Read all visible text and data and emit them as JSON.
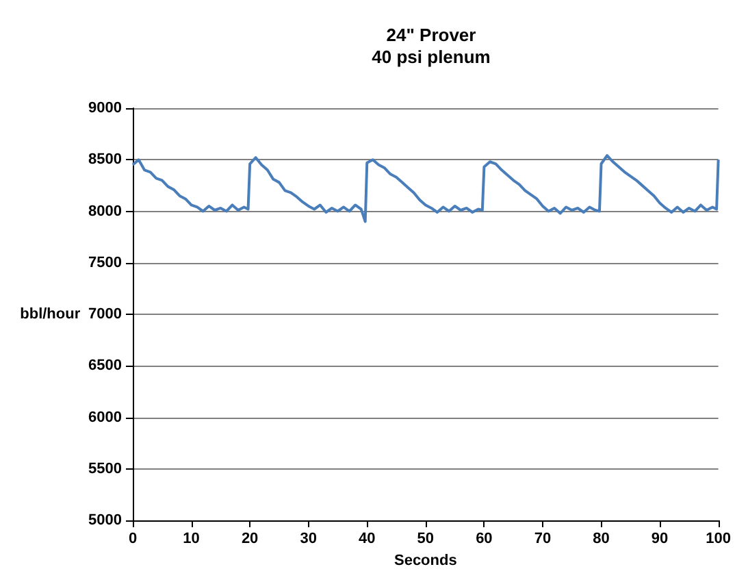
{
  "chart_data": {
    "type": "line",
    "title": "24\" Prover",
    "subtitle": "40 psi plenum",
    "xlabel": "Seconds",
    "ylabel": "bbl/hour",
    "x": [
      0,
      1,
      2,
      3,
      4,
      5,
      6,
      7,
      8,
      9,
      10,
      11,
      12,
      13,
      14,
      15,
      16,
      17,
      18,
      19,
      19.7,
      20,
      21,
      22,
      23,
      24,
      25,
      26,
      27,
      28,
      29,
      30,
      31,
      32,
      33,
      34,
      35,
      36,
      37,
      38,
      39,
      39.7,
      40,
      41,
      42,
      43,
      44,
      45,
      46,
      47,
      48,
      49,
      50,
      51,
      52,
      53,
      54,
      55,
      56,
      57,
      58,
      59,
      59.7,
      60,
      61,
      62,
      63,
      64,
      65,
      66,
      67,
      68,
      69,
      70,
      71,
      72,
      73,
      74,
      75,
      76,
      77,
      78,
      79,
      79.7,
      80,
      81,
      82,
      83,
      84,
      85,
      86,
      87,
      88,
      89,
      90,
      91,
      92,
      93,
      94,
      95,
      96,
      97,
      98,
      99,
      99.7,
      100
    ],
    "series": [
      {
        "color": "#4a7ebb",
        "values": [
          8450,
          8500,
          8400,
          8380,
          8320,
          8300,
          8240,
          8210,
          8150,
          8120,
          8060,
          8040,
          8000,
          8050,
          8010,
          8030,
          8000,
          8060,
          8010,
          8040,
          8020,
          8460,
          8520,
          8450,
          8400,
          8310,
          8280,
          8200,
          8180,
          8140,
          8090,
          8050,
          8020,
          8060,
          7990,
          8030,
          8000,
          8040,
          8000,
          8060,
          8020,
          7900,
          8470,
          8500,
          8450,
          8420,
          8360,
          8330,
          8280,
          8230,
          8180,
          8110,
          8060,
          8030,
          7990,
          8040,
          8000,
          8050,
          8010,
          8030,
          7990,
          8020,
          8010,
          8430,
          8480,
          8460,
          8400,
          8350,
          8300,
          8260,
          8200,
          8160,
          8120,
          8050,
          8000,
          8030,
          7980,
          8040,
          8010,
          8030,
          7990,
          8040,
          8010,
          8000,
          8460,
          8540,
          8480,
          8430,
          8380,
          8340,
          8300,
          8250,
          8200,
          8150,
          8080,
          8030,
          7990,
          8040,
          7990,
          8030,
          8000,
          8060,
          8010,
          8040,
          8020,
          8500
        ]
      }
    ],
    "xlim": [
      0,
      100
    ],
    "xticks": [
      0,
      10,
      20,
      30,
      40,
      50,
      60,
      70,
      80,
      90,
      100
    ],
    "ylim": [
      5000,
      9000
    ],
    "yticks": [
      5000,
      5500,
      6000,
      6500,
      7000,
      7500,
      8000,
      8500,
      9000
    ],
    "grid": "y",
    "marker": "none",
    "line_style": "solid"
  }
}
